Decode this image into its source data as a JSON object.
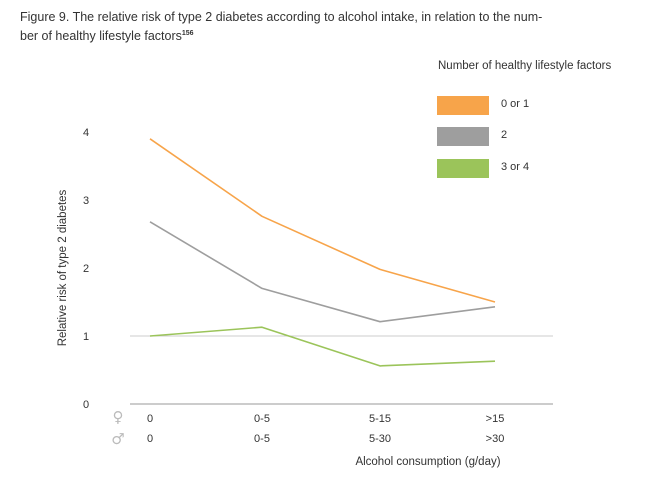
{
  "figure": {
    "title_text": "Figure 9. The relative risk of type 2 diabetes according to alcohol intake, in relation to the num-ber of healthy lifestyle factors",
    "title_line1": "Figure 9. The relative risk of type 2 diabetes according to alcohol intake, in relation to the num-",
    "title_line2": "ber of healthy lifestyle factors",
    "reference": "156"
  },
  "chart_data": {
    "type": "line",
    "title": "Figure 9. The relative risk of type 2 diabetes according to alcohol intake, in relation to the number of healthy lifestyle factors",
    "ylabel": "Relative risk of type 2 diabetes",
    "xlabel": "Alcohol consumption (g/day)",
    "ylim": [
      0,
      4
    ],
    "yticks": [
      0,
      1,
      2,
      3,
      4
    ],
    "reference_line": 1,
    "grid": false,
    "categories_female": [
      "0",
      "0-5",
      "5-15",
      ">15"
    ],
    "categories_male": [
      "0",
      "0-5",
      "5-30",
      ">30"
    ],
    "female_symbol": "♀",
    "male_symbol": "♂",
    "legend_title": "Number of healthy lifestyle factors",
    "legend_position": "top-right",
    "series": [
      {
        "name": "0 or 1",
        "color": "#f7a44a",
        "values": [
          3.9,
          2.76,
          1.98,
          1.5
        ]
      },
      {
        "name": "2",
        "color": "#9e9e9e",
        "values": [
          2.68,
          1.7,
          1.21,
          1.43
        ]
      },
      {
        "name": "3 or 4",
        "color": "#9bc45a",
        "values": [
          1.0,
          1.13,
          0.56,
          0.63
        ]
      }
    ]
  }
}
